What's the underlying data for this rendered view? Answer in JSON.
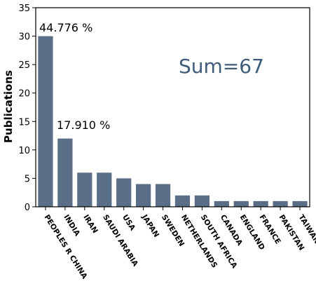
{
  "chart_data": {
    "type": "bar",
    "categories": [
      "PEOPLES R CHINA",
      "INDIA",
      "IRAN",
      "SAUDI ARABIA",
      "USA",
      "JAPAN",
      "SWEDEN",
      "NETHERLANDS",
      "SOUTH AFRICA",
      "CANADA",
      "ENGLAND",
      "FRANCE",
      "PAKISTAN",
      "TAIWAN"
    ],
    "values": [
      30,
      12,
      6,
      6,
      5,
      4,
      4,
      2,
      2,
      1,
      1,
      1,
      1,
      1
    ],
    "ylabel": "Publications",
    "xlabel": "",
    "ylim": [
      0,
      35
    ],
    "yticks": [
      0,
      5,
      10,
      15,
      20,
      25,
      30,
      35
    ],
    "bar_color": "#5a6e88",
    "grid": false,
    "annotations": [
      {
        "text": "44.776 %",
        "category": "PEOPLES R CHINA"
      },
      {
        "text": "17.910 %",
        "category": "INDIA"
      },
      {
        "text": "Sum=67"
      }
    ]
  }
}
